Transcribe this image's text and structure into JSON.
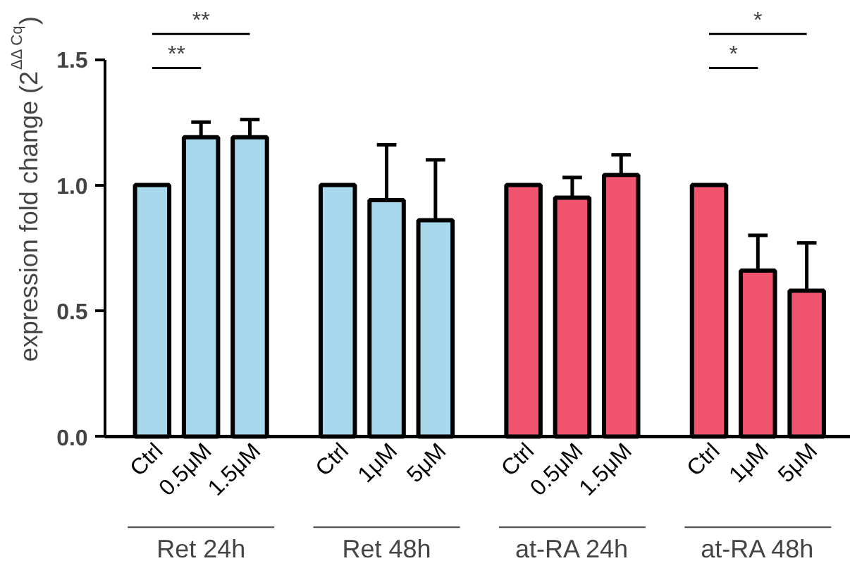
{
  "chart_data": {
    "type": "bar",
    "ylabel": "expression fold change (2$^{ΔΔ Cq}$)",
    "categories": [
      "Ctrl",
      "0.5μM",
      "1.5μM",
      "Ctrl",
      "1μM",
      "5μM",
      "Ctrl",
      "0.5μM",
      "1.5μM",
      "Ctrl",
      "1μM",
      "5μM"
    ],
    "values": [
      1.0,
      1.19,
      1.19,
      1.0,
      0.94,
      0.86,
      1.0,
      0.95,
      1.04,
      1.0,
      0.66,
      0.58
    ],
    "errors": [
      null,
      [
        1.19,
        1.25
      ],
      [
        1.19,
        1.26
      ],
      null,
      [
        0.94,
        1.16
      ],
      [
        0.86,
        1.1
      ],
      null,
      [
        0.95,
        1.03
      ],
      [
        1.04,
        1.12
      ],
      null,
      [
        0.66,
        0.8
      ],
      [
        0.58,
        0.77
      ]
    ],
    "colors": [
      "#a8d8ec",
      "#a8d8ec",
      "#a8d8ec",
      "#a8d8ec",
      "#a8d8ec",
      "#a8d8ec",
      "#f0546e",
      "#f0546e",
      "#f0546e",
      "#f0546e",
      "#f0546e",
      "#f0546e"
    ],
    "ylim": [
      0,
      1.5
    ],
    "yticks": [
      {
        "value": 0,
        "label": "0.0"
      },
      {
        "value": 0.5,
        "label": "0.5"
      },
      {
        "value": 1.0,
        "label": "1.0"
      },
      {
        "value": 1.5,
        "label": "1.5"
      }
    ],
    "annotations": [
      "Ret 24h",
      "Ret 48h",
      "at-RA 24h",
      "at-RA 48h",
      "**",
      "**",
      "*",
      "*"
    ],
    "grid": false
  }
}
